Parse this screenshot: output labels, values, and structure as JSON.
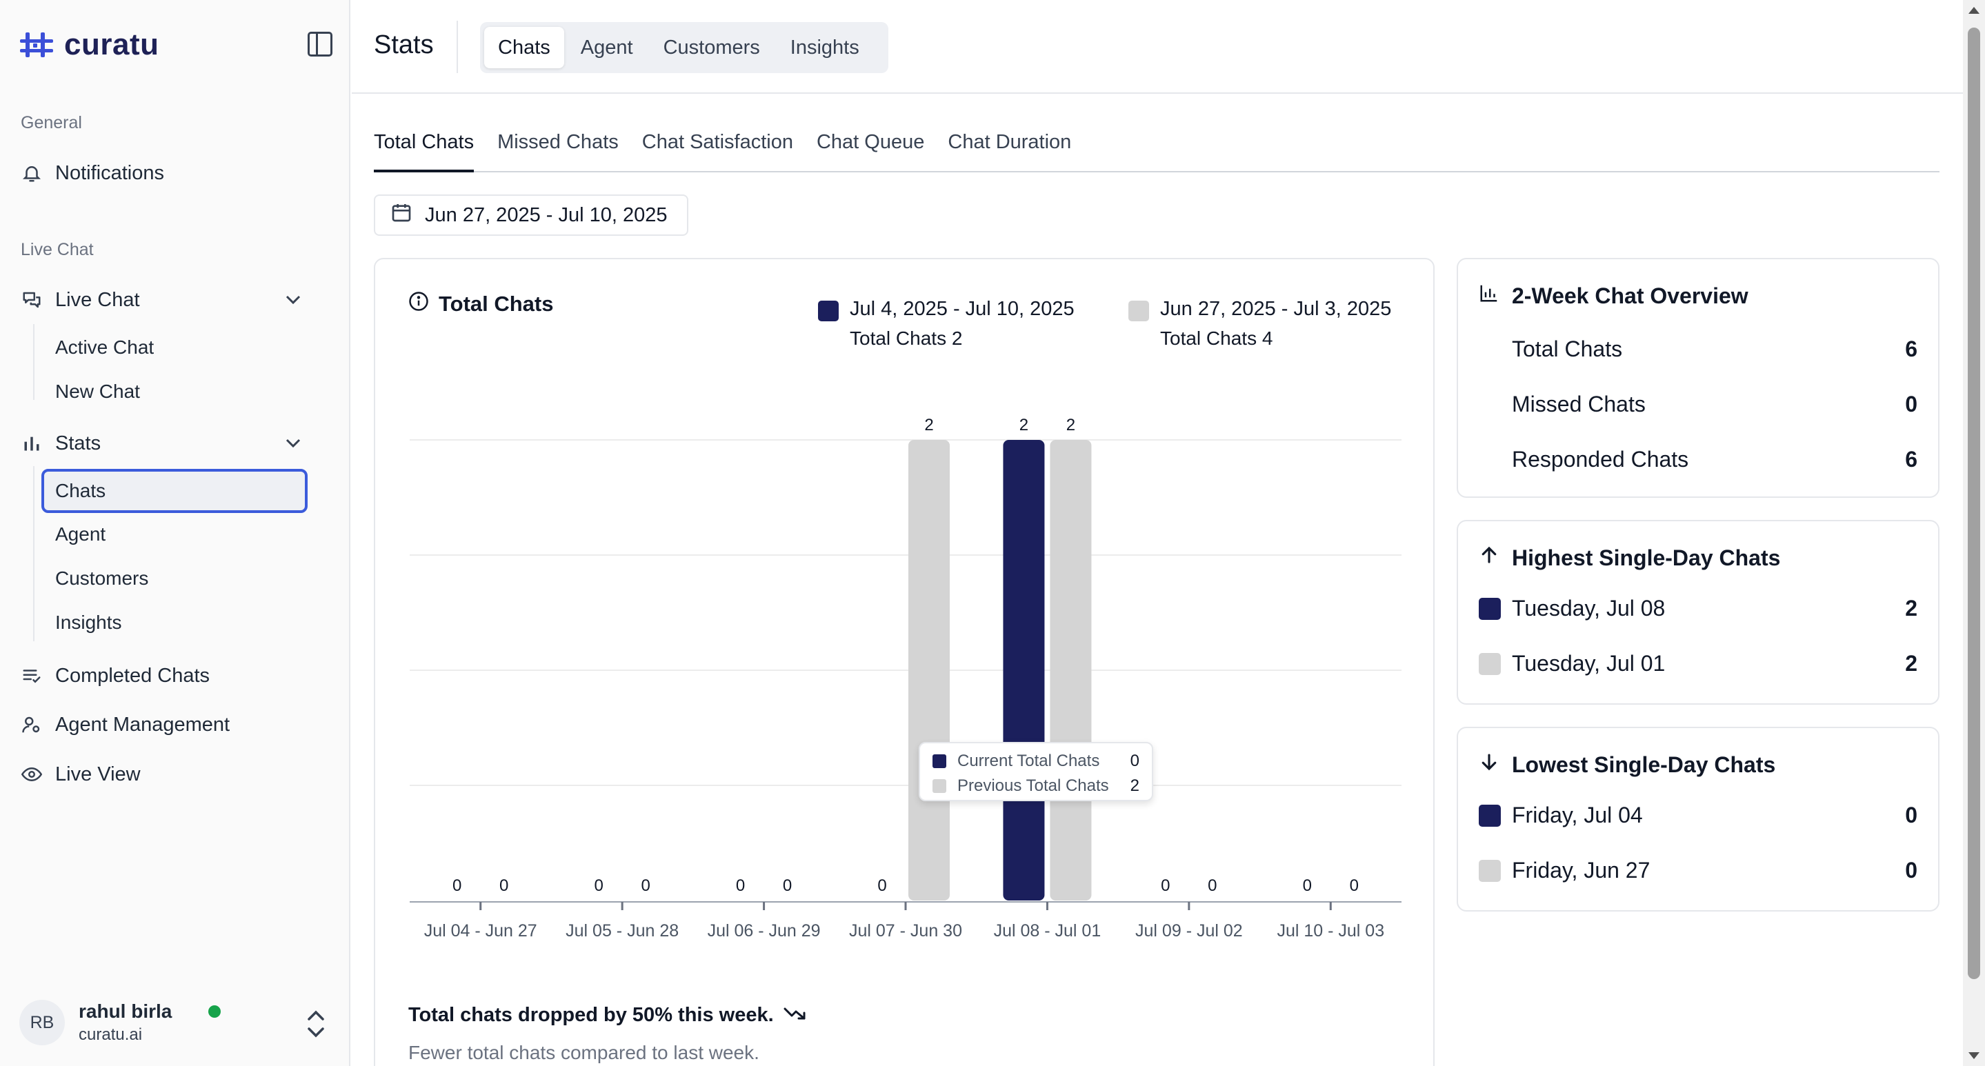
{
  "app": {
    "name": "curatu"
  },
  "sidebar": {
    "general_label": "General",
    "notifications": "Notifications",
    "live_chat_label": "Live Chat",
    "live_chat": "Live Chat",
    "live_chat_items": [
      "Active Chat",
      "New Chat"
    ],
    "stats": "Stats",
    "stats_items": [
      "Chats",
      "Agent",
      "Customers",
      "Insights"
    ],
    "completed_chats": "Completed Chats",
    "agent_management": "Agent Management",
    "live_view": "Live View",
    "user": {
      "initials": "RB",
      "name": "rahul birla",
      "org": "curatu.ai",
      "status_color": "#16a34a"
    }
  },
  "header": {
    "title": "Stats",
    "tabs": [
      "Chats",
      "Agent",
      "Customers",
      "Insights"
    ],
    "active_tab": "Chats"
  },
  "subtabs": {
    "items": [
      "Total Chats",
      "Missed Chats",
      "Chat Satisfaction",
      "Chat Queue",
      "Chat Duration"
    ],
    "active": "Total Chats"
  },
  "date_range": "Jun 27, 2025 - Jul 10, 2025",
  "chart_card": {
    "title": "Total Chats",
    "legend": [
      {
        "range": "Jul 4, 2025 - Jul 10, 2025",
        "total": "Total Chats 2",
        "color": "#1b1f5c"
      },
      {
        "range": "Jun 27, 2025 - Jul 3, 2025",
        "total": "Total Chats 4",
        "color": "#d4d4d4"
      }
    ],
    "tooltip": {
      "current_label": "Current Total Chats",
      "current_value": "0",
      "previous_label": "Previous Total Chats",
      "previous_value": "2"
    },
    "insight_title": "Total chats dropped by 50% this week.",
    "insight_sub": "Fewer total chats compared to last week."
  },
  "chart_data": {
    "type": "bar",
    "categories": [
      "Jul 04 - Jun 27",
      "Jul 05 - Jun 28",
      "Jul 06 - Jun 29",
      "Jul 07 - Jun 30",
      "Jul 08 - Jul 01",
      "Jul 09 - Jul 02",
      "Jul 10 - Jul 03"
    ],
    "series": [
      {
        "values": [
          0,
          0,
          0,
          0,
          2,
          0,
          0
        ],
        "color": "#1b1f5c"
      },
      {
        "values": [
          0,
          0,
          0,
          2,
          2,
          0,
          0
        ],
        "color": "#d4d4d4"
      }
    ],
    "ylim": [
      0,
      2
    ],
    "grid": true,
    "legend_position": "top-right"
  },
  "overview": {
    "title": "2-Week Chat Overview",
    "rows": [
      {
        "label": "Total Chats",
        "value": "6"
      },
      {
        "label": "Missed Chats",
        "value": "0"
      },
      {
        "label": "Responded Chats",
        "value": "6"
      }
    ]
  },
  "highest": {
    "title": "Highest Single-Day Chats",
    "rows": [
      {
        "label": "Tuesday, Jul 08",
        "value": "2",
        "color": "#1b1f5c"
      },
      {
        "label": "Tuesday, Jul 01",
        "value": "2",
        "color": "#d4d4d4"
      }
    ]
  },
  "lowest": {
    "title": "Lowest Single-Day Chats",
    "rows": [
      {
        "label": "Friday, Jul 04",
        "value": "0",
        "color": "#1b1f5c"
      },
      {
        "label": "Friday, Jun 27",
        "value": "0",
        "color": "#d4d4d4"
      }
    ]
  }
}
